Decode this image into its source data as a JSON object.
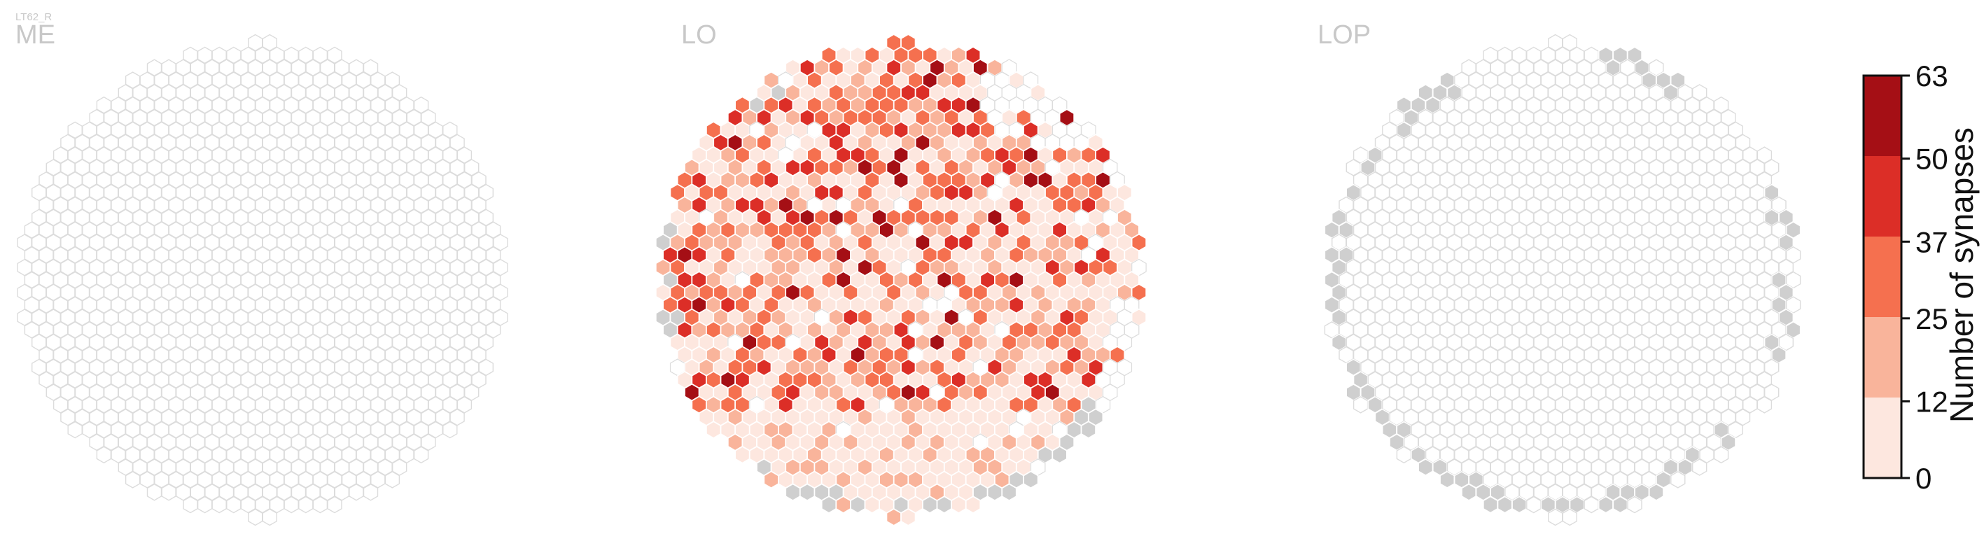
{
  "cell_type": "LT62_R",
  "chart_data": [
    {
      "type": "heatmap",
      "title": "ME",
      "note_values": "estimated from hexagon colors; -1 = grey (outside/no data), 0 = empty, 1-5 = colorbar band index",
      "bins": [],
      "missing_cells": [],
      "all_cells_empty": true
    },
    {
      "type": "heatmap",
      "title": "LO",
      "band_distribution_fraction": {
        "0-12": 0.38,
        "12-25": 0.27,
        "25-37": 0.2,
        "37-50": 0.11,
        "50-63": 0.04
      },
      "grey_cells_position": [
        "top-left edge",
        "left edge",
        "bottom edge",
        "bottom-right edge"
      ]
    },
    {
      "type": "heatmap",
      "title": "LOP",
      "all_cells_empty": true,
      "grey_cells_position": [
        "left rim",
        "right rim",
        "bottom rim",
        "top rim"
      ]
    }
  ],
  "colorbar": {
    "label": "Number of synapses",
    "ticks": [
      "0",
      "12",
      "25",
      "37",
      "50",
      "63"
    ],
    "tick_values": [
      0,
      12,
      25,
      37,
      50,
      63
    ],
    "band_colors": [
      "#fde7df",
      "#f9b49b",
      "#f5704f",
      "#dc2e27",
      "#a50f15"
    ]
  },
  "colors": {
    "empty_fill": "#ffffff",
    "empty_stroke": "#dcdcdc",
    "grey_cell": "#cfcfcf",
    "title_color": "#c8c8c8"
  }
}
